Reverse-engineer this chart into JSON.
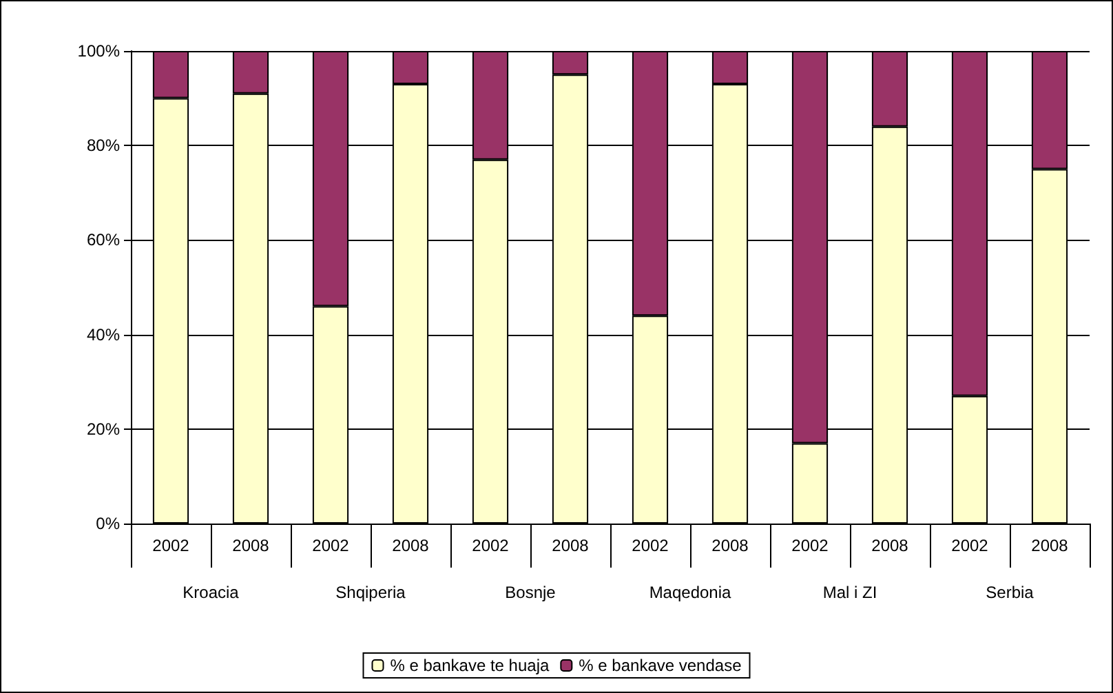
{
  "chart_data": {
    "type": "bar",
    "stacked": true,
    "categories": [
      "2002",
      "2008",
      "2002",
      "2008",
      "2002",
      "2008",
      "2002",
      "2008",
      "2002",
      "2008",
      "2002",
      "2008"
    ],
    "annotations": [
      "Kroacia",
      "Shqiperia",
      "Bosnje",
      "Maqedonia",
      "Mal i ZI",
      "Serbia"
    ],
    "series": [
      {
        "name": "% e bankave te huaja",
        "color": "#ffffcc",
        "values": [
          90,
          91,
          46,
          93,
          77,
          95,
          44,
          93,
          17,
          84,
          27,
          75
        ]
      },
      {
        "name": "% e bankave vendase",
        "color": "#993366",
        "values": [
          10,
          9,
          54,
          7,
          23,
          5,
          56,
          7,
          83,
          16,
          73,
          25
        ]
      }
    ],
    "ylim": [
      0,
      100
    ],
    "yticks": [
      {
        "value": 0,
        "label": "0%"
      },
      {
        "value": 20,
        "label": "20%"
      },
      {
        "value": 40,
        "label": "40%"
      },
      {
        "value": 60,
        "label": "60%"
      },
      {
        "value": 80,
        "label": "80%"
      },
      {
        "value": 100,
        "label": "100%"
      }
    ],
    "grid": "y",
    "legend": "bottom"
  }
}
